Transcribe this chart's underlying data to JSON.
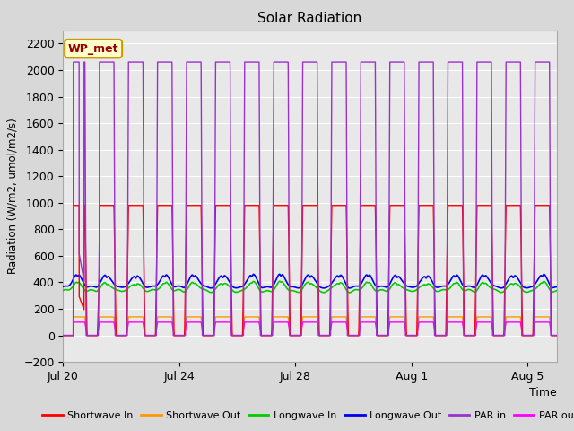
{
  "title": "Solar Radiation",
  "ylabel": "Radiation (W/m2, umol/m2/s)",
  "xlabel": "Time",
  "ylim": [
    -200,
    2300
  ],
  "yticks": [
    -200,
    0,
    200,
    400,
    600,
    800,
    1000,
    1200,
    1400,
    1600,
    1800,
    2000,
    2200
  ],
  "fig_bg": "#d8d8d8",
  "plot_bg": "#e8e8e8",
  "annotation_text": "WP_met",
  "annotation_bg": "#ffffcc",
  "annotation_border": "#cc9900",
  "legend": [
    {
      "label": "Shortwave In",
      "color": "#ff0000"
    },
    {
      "label": "Shortwave Out",
      "color": "#ff9900"
    },
    {
      "label": "Longwave In",
      "color": "#00cc00"
    },
    {
      "label": "Longwave Out",
      "color": "#0000ee"
    },
    {
      "label": "PAR in",
      "color": "#9933cc"
    },
    {
      "label": "PAR out",
      "color": "#ff00ff"
    }
  ],
  "xtick_labels": [
    "Jul 20",
    "Jul 24",
    "Jul 28",
    "Aug 1",
    "Aug 5"
  ],
  "xtick_positions": [
    0,
    4,
    8,
    12,
    16
  ],
  "n_days": 17,
  "sw_in_peak": 980,
  "sw_out_peak": 140,
  "lw_in_base": 335,
  "lw_in_daytime_add": 65,
  "lw_out_base": 365,
  "lw_out_daytime_add": 95,
  "par_in_peak": 2060,
  "par_out_peak": 100,
  "day_start": 0.25,
  "day_end": 0.75,
  "pts_per_day": 288
}
